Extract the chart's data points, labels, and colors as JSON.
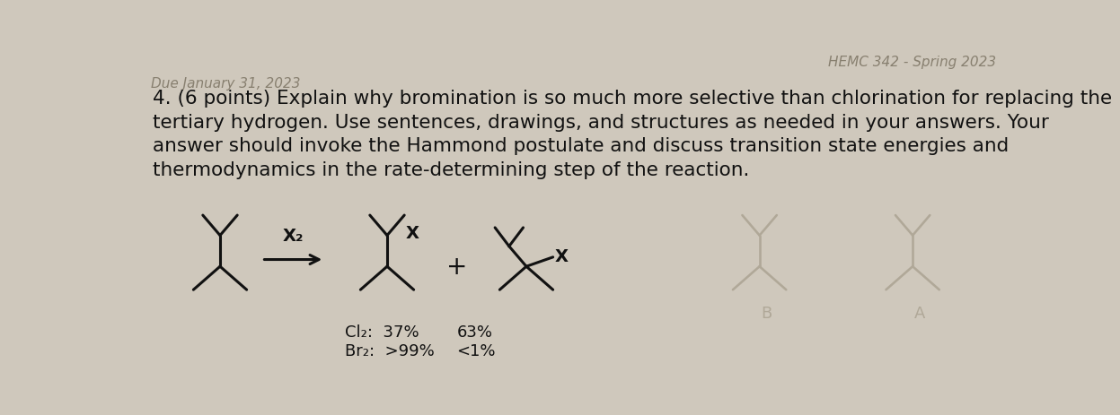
{
  "background_color": "#cfc8bc",
  "question_number": "4.",
  "question_text": "(6 points) Explain why bromination is so much more selective than chlorination for replacing the\ntertiary hydrogen. Use sentences, drawings, and structures as needed in your answers. Your\nanswer should invoke the Hammond postulate and discuss transition state energies and\nthermodynamics in the rate-determining step of the reaction.",
  "reagent_label": "X₂",
  "percent_tert_cl": "37%",
  "percent_sec_cl": "63%",
  "percent_tert_br": ">99%",
  "percent_sec_br": "<1%",
  "cl2_label": "Cl₂:",
  "br2_label": "Br₂:",
  "plus_sign": "+",
  "label_B": "B",
  "label_A": "A",
  "text_color": "#111111",
  "ghost_color": "#b0a898",
  "header_color": "#888070",
  "font_size_question": 15.5,
  "font_size_labels": 13,
  "font_size_percent": 13,
  "font_size_header": 11,
  "mol_scale": 45,
  "mol_lw": 2.2
}
